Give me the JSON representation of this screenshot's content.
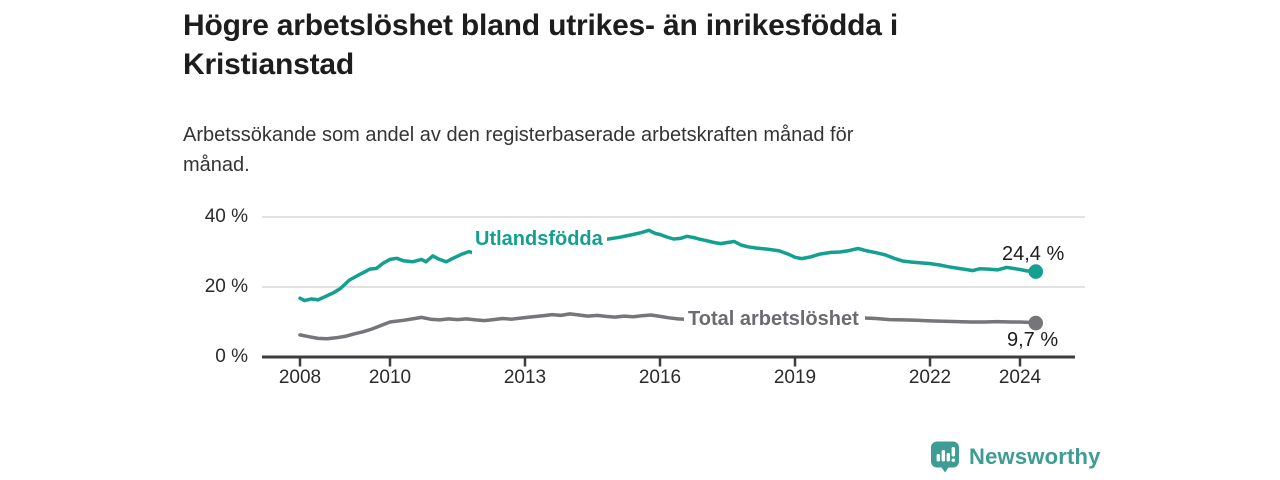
{
  "header": {
    "title_line1": "Högre arbetslöshet bland utrikes- än inrikesfödda i",
    "title_line2": "Kristianstad",
    "subtitle_line1": "Arbetssökande som andel av den registerbaserade arbetskraften månad för",
    "subtitle_line2": "månad."
  },
  "colors": {
    "background": "#ffffff",
    "teal": "#14a091",
    "gray": "#75757a",
    "gray_label": "#6b6b70",
    "text_dark": "#1d1d1d",
    "text_medium": "#343434",
    "axis_text": "#2b2b2b",
    "axis_line": "#3d3d3d",
    "gridline": "#d8d8d8",
    "logo_teal": "#3d9c93"
  },
  "logo": {
    "text": "Newsworthy",
    "icon": "bar-chart-speech-bubble-icon"
  },
  "chart_data": {
    "type": "line",
    "title": "Högre arbetslöshet bland utrikes- än inrikesfödda i Kristianstad",
    "subtitle": "Arbetssökande som andel av den registerbaserade arbetskraften månad för månad.",
    "xlabel": "",
    "ylabel": "%",
    "ylim": [
      0,
      40
    ],
    "grid": "horizontal",
    "legend_position": "inline-on-line",
    "y_ticks": [
      {
        "label": "0 %",
        "value": 0
      },
      {
        "label": "20 %",
        "value": 20
      },
      {
        "label": "40 %",
        "value": 40
      }
    ],
    "x_ticks": [
      {
        "label": "2008",
        "year": 2008
      },
      {
        "label": "2010",
        "year": 2010
      },
      {
        "label": "2013",
        "year": 2013
      },
      {
        "label": "2016",
        "year": 2016
      },
      {
        "label": "2019",
        "year": 2019
      },
      {
        "label": "2022",
        "year": 2022
      },
      {
        "label": "2024",
        "year": 2024
      }
    ],
    "series": [
      {
        "name": "Utlandsfödda",
        "color": "#14a091",
        "end_label": "24,4 %",
        "end_value": 24.4,
        "points": [
          [
            2008.0,
            16.8
          ],
          [
            2008.1,
            16.1
          ],
          [
            2008.25,
            16.6
          ],
          [
            2008.4,
            16.3
          ],
          [
            2008.55,
            17.2
          ],
          [
            2008.75,
            18.4
          ],
          [
            2008.9,
            19.6
          ],
          [
            2009.1,
            22.0
          ],
          [
            2009.3,
            23.4
          ],
          [
            2009.45,
            24.4
          ],
          [
            2009.55,
            25.1
          ],
          [
            2009.7,
            25.3
          ],
          [
            2009.85,
            26.8
          ],
          [
            2010.0,
            27.9
          ],
          [
            2010.15,
            28.2
          ],
          [
            2010.3,
            27.5
          ],
          [
            2010.5,
            27.2
          ],
          [
            2010.7,
            27.9
          ],
          [
            2010.8,
            27.2
          ],
          [
            2010.95,
            28.9
          ],
          [
            2011.1,
            27.9
          ],
          [
            2011.25,
            27.2
          ],
          [
            2011.4,
            28.2
          ],
          [
            2011.6,
            29.4
          ],
          [
            2011.75,
            30.1
          ],
          [
            2011.9,
            29.6
          ],
          [
            2012.1,
            29.9
          ],
          [
            2012.35,
            30.3
          ],
          [
            2012.65,
            30.6
          ],
          [
            2012.9,
            30.9
          ],
          [
            2013.2,
            31.3
          ],
          [
            2013.6,
            31.8
          ],
          [
            2014.0,
            32.3
          ],
          [
            2014.4,
            32.9
          ],
          [
            2014.8,
            33.6
          ],
          [
            2015.1,
            34.2
          ],
          [
            2015.25,
            34.6
          ],
          [
            2015.4,
            35.0
          ],
          [
            2015.6,
            35.6
          ],
          [
            2015.75,
            36.2
          ],
          [
            2015.9,
            35.3
          ],
          [
            2016.0,
            35.0
          ],
          [
            2016.15,
            34.3
          ],
          [
            2016.3,
            33.7
          ],
          [
            2016.45,
            33.9
          ],
          [
            2016.6,
            34.5
          ],
          [
            2016.75,
            34.1
          ],
          [
            2016.9,
            33.6
          ],
          [
            2017.05,
            33.2
          ],
          [
            2017.2,
            32.7
          ],
          [
            2017.35,
            32.4
          ],
          [
            2017.5,
            32.7
          ],
          [
            2017.65,
            33.0
          ],
          [
            2017.8,
            32.0
          ],
          [
            2017.95,
            31.5
          ],
          [
            2018.15,
            31.1
          ],
          [
            2018.4,
            30.8
          ],
          [
            2018.65,
            30.3
          ],
          [
            2018.85,
            29.4
          ],
          [
            2019.0,
            28.5
          ],
          [
            2019.15,
            28.1
          ],
          [
            2019.35,
            28.6
          ],
          [
            2019.55,
            29.4
          ],
          [
            2019.8,
            29.9
          ],
          [
            2020.0,
            30.0
          ],
          [
            2020.2,
            30.4
          ],
          [
            2020.4,
            31.0
          ],
          [
            2020.6,
            30.3
          ],
          [
            2020.8,
            29.8
          ],
          [
            2021.0,
            29.2
          ],
          [
            2021.2,
            28.2
          ],
          [
            2021.4,
            27.4
          ],
          [
            2021.6,
            27.1
          ],
          [
            2021.8,
            26.9
          ],
          [
            2022.0,
            26.7
          ],
          [
            2022.2,
            26.3
          ],
          [
            2022.4,
            25.8
          ],
          [
            2022.6,
            25.4
          ],
          [
            2022.8,
            25.0
          ],
          [
            2022.95,
            24.7
          ],
          [
            2023.1,
            25.2
          ],
          [
            2023.3,
            25.1
          ],
          [
            2023.5,
            24.9
          ],
          [
            2023.7,
            25.6
          ],
          [
            2023.85,
            25.3
          ],
          [
            2024.0,
            25.0
          ],
          [
            2024.15,
            24.6
          ],
          [
            2024.35,
            24.4
          ]
        ]
      },
      {
        "name": "Total arbetslöshet",
        "color": "#75757a",
        "end_label": "9,7 %",
        "end_value": 9.7,
        "points": [
          [
            2008.0,
            6.3
          ],
          [
            2008.2,
            5.8
          ],
          [
            2008.4,
            5.3
          ],
          [
            2008.6,
            5.2
          ],
          [
            2008.8,
            5.5
          ],
          [
            2009.0,
            5.9
          ],
          [
            2009.2,
            6.6
          ],
          [
            2009.4,
            7.2
          ],
          [
            2009.6,
            8.0
          ],
          [
            2009.8,
            9.0
          ],
          [
            2010.0,
            10.0
          ],
          [
            2010.3,
            10.5
          ],
          [
            2010.5,
            10.9
          ],
          [
            2010.7,
            11.3
          ],
          [
            2010.9,
            10.8
          ],
          [
            2011.1,
            10.6
          ],
          [
            2011.3,
            10.9
          ],
          [
            2011.5,
            10.7
          ],
          [
            2011.7,
            10.9
          ],
          [
            2011.9,
            10.6
          ],
          [
            2012.1,
            10.4
          ],
          [
            2012.3,
            10.7
          ],
          [
            2012.5,
            11.0
          ],
          [
            2012.7,
            10.8
          ],
          [
            2012.9,
            11.1
          ],
          [
            2013.1,
            11.4
          ],
          [
            2013.4,
            11.8
          ],
          [
            2013.6,
            12.1
          ],
          [
            2013.8,
            11.9
          ],
          [
            2014.0,
            12.3
          ],
          [
            2014.2,
            12.0
          ],
          [
            2014.4,
            11.7
          ],
          [
            2014.6,
            11.9
          ],
          [
            2014.8,
            11.6
          ],
          [
            2015.0,
            11.4
          ],
          [
            2015.2,
            11.7
          ],
          [
            2015.4,
            11.5
          ],
          [
            2015.6,
            11.8
          ],
          [
            2015.8,
            12.0
          ],
          [
            2016.0,
            11.6
          ],
          [
            2016.2,
            11.2
          ],
          [
            2016.4,
            10.9
          ],
          [
            2016.55,
            10.8
          ],
          [
            2017.0,
            10.5
          ],
          [
            2017.5,
            10.3
          ],
          [
            2018.0,
            10.2
          ],
          [
            2018.5,
            10.1
          ],
          [
            2019.0,
            10.0
          ],
          [
            2019.5,
            10.1
          ],
          [
            2020.0,
            10.8
          ],
          [
            2020.4,
            11.2
          ],
          [
            2020.8,
            11.0
          ],
          [
            2021.1,
            10.7
          ],
          [
            2021.4,
            10.6
          ],
          [
            2021.7,
            10.5
          ],
          [
            2022.0,
            10.3
          ],
          [
            2022.3,
            10.2
          ],
          [
            2022.6,
            10.1
          ],
          [
            2022.9,
            10.0
          ],
          [
            2023.2,
            10.0
          ],
          [
            2023.5,
            10.1
          ],
          [
            2023.8,
            10.0
          ],
          [
            2024.0,
            10.0
          ],
          [
            2024.2,
            9.9
          ],
          [
            2024.35,
            9.7
          ]
        ]
      }
    ]
  }
}
